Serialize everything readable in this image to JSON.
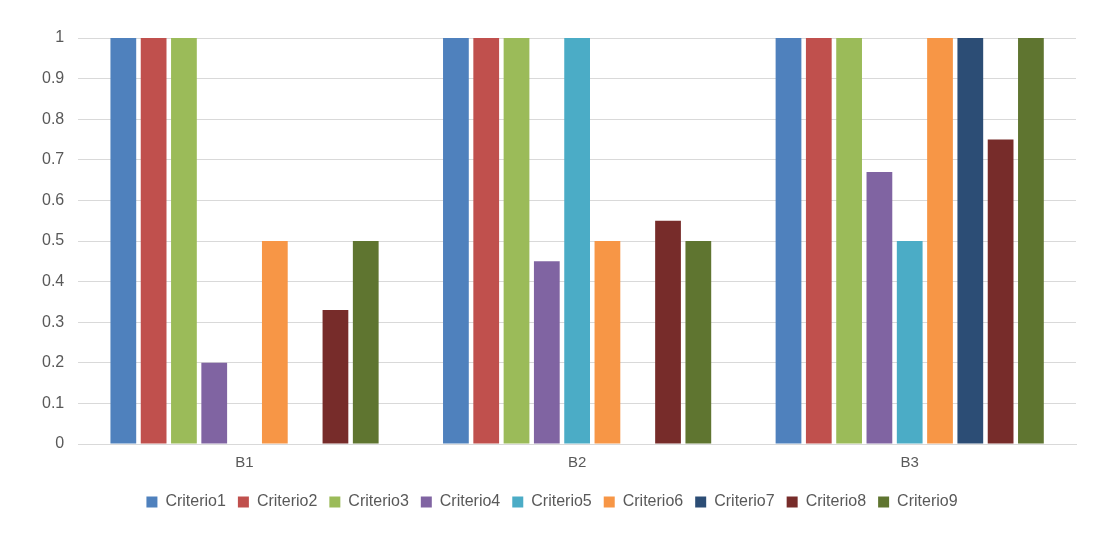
{
  "chart_data": {
    "type": "bar",
    "categories": [
      "B1",
      "B2",
      "B3"
    ],
    "series": [
      {
        "name": "Criterio1",
        "color": "#4f81bd",
        "values": [
          1,
          1,
          1
        ]
      },
      {
        "name": "Criterio2",
        "color": "#c0504d",
        "values": [
          1,
          1,
          1
        ]
      },
      {
        "name": "Criterio3",
        "color": "#9bbb59",
        "values": [
          1,
          1,
          1
        ]
      },
      {
        "name": "Criterio4",
        "color": "#8064a2",
        "values": [
          0.2,
          0.45,
          0.67
        ]
      },
      {
        "name": "Criterio5",
        "color": "#4bacc6",
        "values": [
          0,
          1,
          0.5
        ]
      },
      {
        "name": "Criterio6",
        "color": "#f79646",
        "values": [
          0.5,
          0.5,
          1
        ]
      },
      {
        "name": "Criterio7",
        "color": "#2c4d75",
        "values": [
          0,
          0,
          1
        ]
      },
      {
        "name": "Criterio8",
        "color": "#772c2a",
        "values": [
          0.33,
          0.55,
          0.75
        ]
      },
      {
        "name": "Criterio9",
        "color": "#5f7530",
        "values": [
          0.5,
          0.5,
          1
        ]
      }
    ],
    "ylim": [
      0,
      1
    ],
    "yticks": [
      0,
      0.1,
      0.2,
      0.3,
      0.4,
      0.5,
      0.6,
      0.7,
      0.8,
      0.9,
      1
    ],
    "grid": "y",
    "legend": "bottom"
  }
}
